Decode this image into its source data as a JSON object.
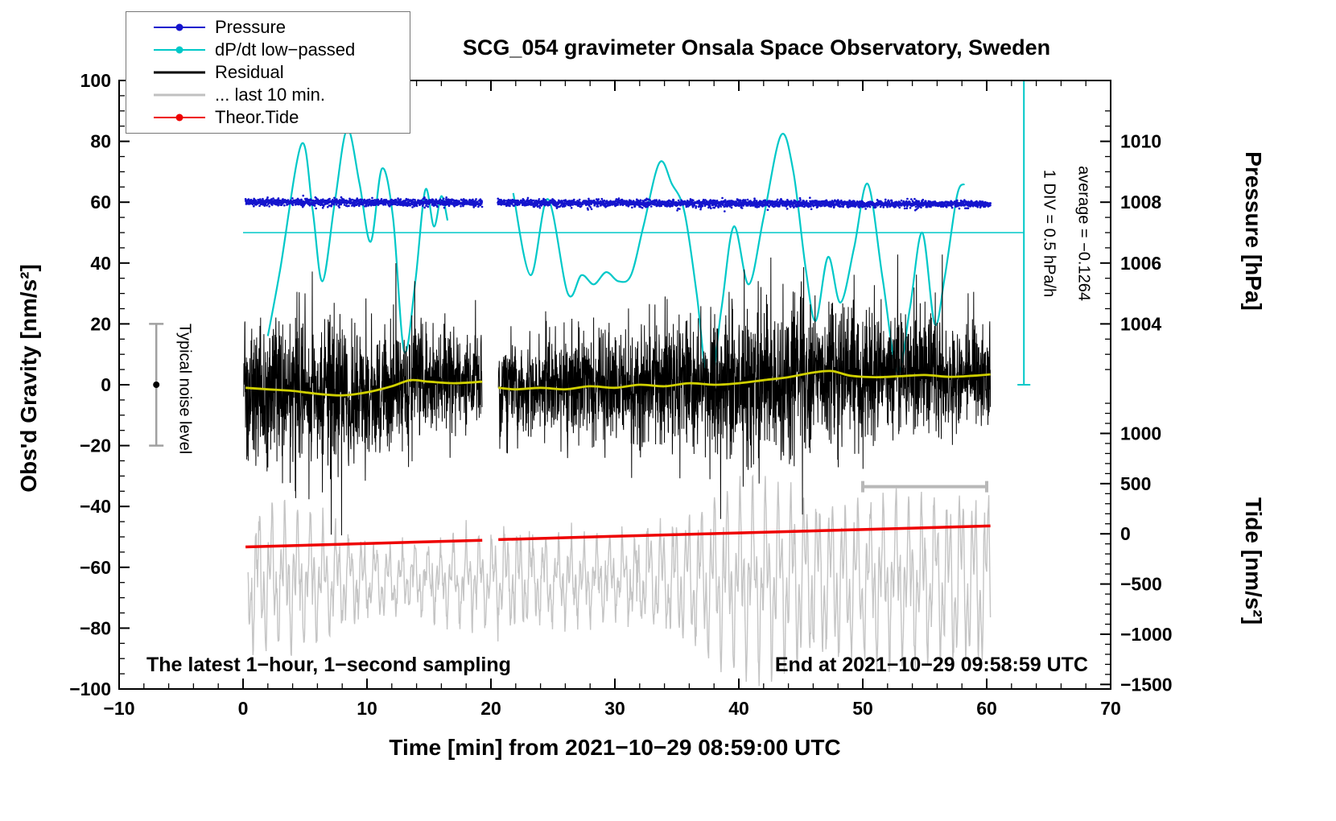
{
  "figure": {
    "title": "SCG_054 gravimeter Onsala Space Observatory, Sweden",
    "sampling_note": "The latest 1−hour, 1−second sampling",
    "end_note": "End at 2021−10−29 09:58:59 UTC"
  },
  "legend": {
    "items": [
      {
        "label": "Pressure",
        "color": "#1414cd",
        "lw": 2,
        "dot": true
      },
      {
        "label": "dP/dt low−passed",
        "color": "#00c8c8",
        "lw": 2,
        "dot": true
      },
      {
        "label": "Residual",
        "color": "#000000",
        "lw": 3,
        "dot": false
      },
      {
        "label": "... last 10 min.",
        "color": "#c0c0c0",
        "lw": 3,
        "dot": false
      },
      {
        "label": "Theor.Tide",
        "color": "#ee0000",
        "lw": 2,
        "dot": true
      }
    ]
  },
  "annotations": {
    "one_div": "1 DIV = 0.5 hPa/h",
    "average": "average = −0.1264",
    "noise_level": "Typical noise level"
  },
  "chart_data": {
    "type": "line",
    "title": "SCG_054 gravimeter Onsala Space Observatory, Sweden",
    "xlabel": "Time [min] from 2021−10−29 08:59:00 UTC",
    "ylabel": "Obs'd Gravity [nm/s²]",
    "y2label_pressure": "Pressure [hPa]",
    "y2label_tide": "Tide [nm/s²]",
    "xlim": [
      -10,
      70
    ],
    "ylim": [
      -100,
      100
    ],
    "x_major_ticks": [
      -10,
      0,
      10,
      20,
      30,
      40,
      50,
      60,
      70
    ],
    "x_tick_labels": [
      "−10",
      "0",
      "10",
      "20",
      "30",
      "40",
      "50",
      "60",
      "70"
    ],
    "x_minor_step": 2,
    "y_major_ticks": [
      -100,
      -80,
      -60,
      -40,
      -20,
      0,
      20,
      40,
      60,
      80,
      100
    ],
    "y_tick_labels": [
      "−100",
      "−80",
      "−60",
      "−40",
      "−20",
      "0",
      "20",
      "40",
      "60",
      "80",
      "100"
    ],
    "y_minor_step": 5,
    "pressure_axis": {
      "tick_values": [
        1010,
        1008,
        1006,
        1004
      ],
      "tick_labels": [
        "1010",
        "1008",
        "1006",
        "1004"
      ],
      "ref_hPa": 1008,
      "ref_gravity": 60,
      "gravity_per_hPa": 10,
      "minor_step_hPa": 0.5
    },
    "tide_axis": {
      "tick_values": [
        1000,
        500,
        0,
        -500,
        -1000,
        -1500
      ],
      "tick_labels": [
        "1000",
        "500",
        "0",
        "−500",
        "−1000",
        "−1500"
      ],
      "ref_tide": 0,
      "ref_gravity": -49,
      "gravity_per_unit": 0.033,
      "minor_step": 100
    },
    "data_gap_min": [
      19.3,
      20.55
    ],
    "series": {
      "pressure": {
        "type": "scatter",
        "color": "#1414cd",
        "mean_hPa": 1008,
        "mean_gravity": 60,
        "noise_sd": 0.55,
        "trend_per_min": -0.012,
        "segments": [
          [
            0.2,
            19.3
          ],
          [
            20.55,
            60.3
          ]
        ]
      },
      "dpdt_lowpassed": {
        "type": "smooth",
        "color": "#00c8c8",
        "mean_line_gravity": 50,
        "points_seg1": [
          [
            2,
            16
          ],
          [
            3,
            38
          ],
          [
            4.7,
            79
          ],
          [
            5.6,
            58
          ],
          [
            6.4,
            34
          ],
          [
            7.4,
            60
          ],
          [
            8.4,
            84
          ],
          [
            9.4,
            66
          ],
          [
            10.3,
            47
          ],
          [
            11.2,
            71
          ],
          [
            12.1,
            55
          ],
          [
            13,
            11
          ],
          [
            13.9,
            34
          ],
          [
            14.7,
            64
          ],
          [
            15.4,
            52
          ],
          [
            16,
            62
          ],
          [
            16.5,
            54
          ]
        ],
        "points_seg2": [
          [
            21.8,
            63
          ],
          [
            23.2,
            36
          ],
          [
            24.6,
            61
          ],
          [
            26.2,
            30
          ],
          [
            27.3,
            36
          ],
          [
            28.3,
            33
          ],
          [
            29.3,
            37
          ],
          [
            30.3,
            34
          ],
          [
            31.3,
            36
          ],
          [
            32.3,
            52
          ],
          [
            33.6,
            73
          ],
          [
            34.6,
            66
          ],
          [
            35.6,
            57
          ],
          [
            36.6,
            30
          ],
          [
            37.6,
            -2
          ],
          [
            38.6,
            25
          ],
          [
            39.6,
            52
          ],
          [
            40.8,
            33
          ],
          [
            42,
            55
          ],
          [
            43.4,
            82
          ],
          [
            44.4,
            70
          ],
          [
            45.4,
            38
          ],
          [
            46.2,
            21
          ],
          [
            47.2,
            42
          ],
          [
            48.2,
            27
          ],
          [
            49.3,
            45
          ],
          [
            50.4,
            66
          ],
          [
            51.6,
            35
          ],
          [
            52.8,
            4
          ],
          [
            53.8,
            25
          ],
          [
            54.8,
            50
          ],
          [
            55.8,
            20
          ],
          [
            56.6,
            35
          ],
          [
            57.6,
            62
          ],
          [
            58.2,
            66
          ]
        ]
      },
      "residual": {
        "type": "noisy_line",
        "color": "#000000",
        "center_gravity": 0,
        "sd": 9.5,
        "spike_prob": 0.006,
        "range": [
          -46,
          40
        ],
        "segments": [
          [
            0.05,
            19.3
          ],
          [
            20.6,
            60.3
          ]
        ]
      },
      "residual_smooth": {
        "type": "smooth",
        "color": "#d0d000",
        "points_seg1": [
          [
            0.2,
            -1
          ],
          [
            2,
            -1.5
          ],
          [
            4,
            -2
          ],
          [
            6,
            -3
          ],
          [
            8,
            -3.5
          ],
          [
            10,
            -2.5
          ],
          [
            12,
            -0.5
          ],
          [
            13.5,
            1.5
          ],
          [
            15,
            1
          ],
          [
            17,
            0.5
          ],
          [
            19.3,
            1
          ]
        ],
        "points_seg2": [
          [
            20.6,
            -1
          ],
          [
            22,
            -1.5
          ],
          [
            24,
            -1
          ],
          [
            26,
            -1.5
          ],
          [
            28,
            -0.5
          ],
          [
            30,
            -1
          ],
          [
            32,
            0
          ],
          [
            34,
            -0.5
          ],
          [
            36,
            0.5
          ],
          [
            38,
            0
          ],
          [
            40,
            0.5
          ],
          [
            42,
            1.5
          ],
          [
            44,
            2.5
          ],
          [
            46,
            4
          ],
          [
            47.5,
            4.5
          ],
          [
            49,
            3
          ],
          [
            51,
            2.5
          ],
          [
            53,
            2.8
          ],
          [
            55,
            3.2
          ],
          [
            57,
            2.6
          ],
          [
            59,
            3
          ],
          [
            60.3,
            3.4
          ]
        ]
      },
      "last_10_min": {
        "type": "oscillation",
        "color": "#c4c4c4",
        "center_gravity": -64,
        "amplitude_range": [
          14,
          30
        ],
        "x_range": [
          0.4,
          60.3
        ]
      },
      "theor_tide": {
        "type": "line",
        "color": "#ee0000",
        "points_seg1": [
          [
            0.2,
            -53.3
          ],
          [
            10,
            -52.2
          ],
          [
            19.3,
            -51.1
          ]
        ],
        "points_seg2": [
          [
            20.6,
            -50.9
          ],
          [
            30,
            -49.8
          ],
          [
            40,
            -48.7
          ],
          [
            50,
            -47.6
          ],
          [
            60.3,
            -46.4
          ]
        ],
        "tide_start_nm_s2": -130,
        "tide_end_nm_s2": 79
      }
    },
    "markers": {
      "mean_pressure_line": {
        "gravity": 50,
        "x0": 0,
        "x1": 63,
        "color": "#00c8c8"
      },
      "scale_bar": {
        "x": 63,
        "g0": 0,
        "g1": 100,
        "color": "#00c8c8"
      },
      "last10_bar": {
        "g": -33.5,
        "x0": 50,
        "x1": 60,
        "color": "#b8b8b8"
      },
      "noise_bar": {
        "x": -7,
        "g0": -20,
        "g1": 20,
        "color": "#a0a0a0"
      }
    }
  }
}
